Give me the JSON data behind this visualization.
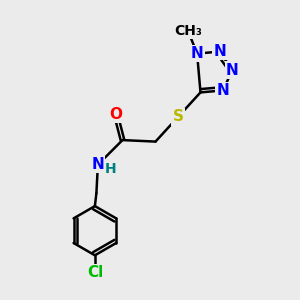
{
  "background_color": "#ebebeb",
  "bond_color": "#000000",
  "bond_width": 1.8,
  "atom_colors": {
    "N": "#0000ff",
    "O": "#ff0000",
    "S": "#b8b800",
    "Cl": "#00bb00",
    "C": "#000000",
    "H": "#008080"
  },
  "font_size": 11,
  "figsize": [
    3.0,
    3.0
  ],
  "dpi": 100
}
